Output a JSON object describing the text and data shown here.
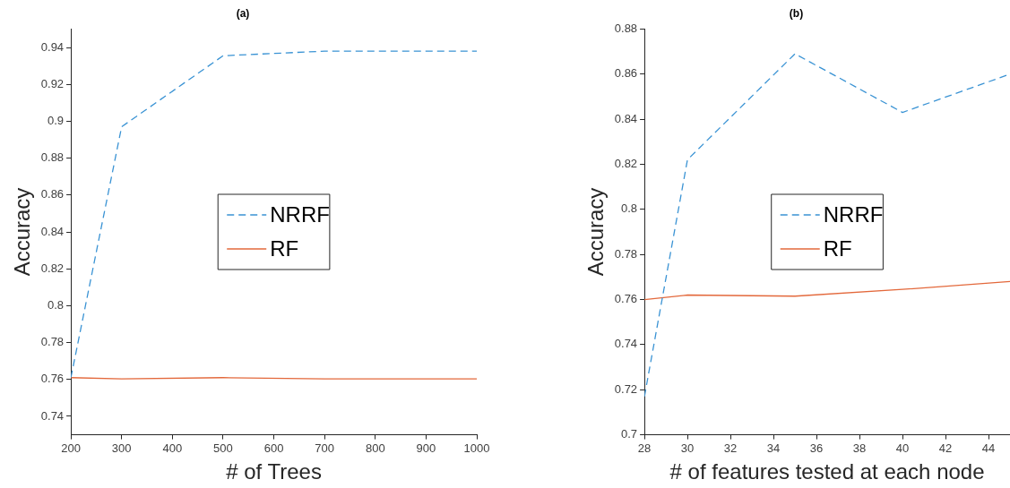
{
  "chart_data": [
    {
      "type": "line",
      "title": "(a)",
      "xlabel": "# of Trees",
      "ylabel": "Accuracy",
      "x": [
        200,
        300,
        500,
        700,
        1000
      ],
      "series": [
        {
          "name": "NRRF",
          "color": "#3a93d4",
          "line_style": "dashed",
          "values": [
            0.761,
            0.897,
            0.9355,
            0.938,
            0.938
          ]
        },
        {
          "name": "RF",
          "color": "#e3683b",
          "line_style": "solid",
          "values": [
            0.761,
            0.7603,
            0.761,
            0.7603,
            0.7603
          ]
        }
      ],
      "xlim": [
        200,
        1000
      ],
      "xticks": [
        200,
        300,
        400,
        500,
        600,
        700,
        800,
        900,
        1000
      ],
      "ylim": [
        0.73,
        0.95
      ],
      "yticks": [
        0.74,
        0.76,
        0.78,
        0.8,
        0.82,
        0.84,
        0.86,
        0.88,
        0.9,
        0.92,
        0.94
      ],
      "grid": false,
      "legend": "center",
      "marker": "none"
    },
    {
      "type": "line",
      "title": "(b)",
      "xlabel": "# of features tested at each node",
      "ylabel": "Accuracy",
      "x": [
        28,
        30,
        35,
        40,
        45
      ],
      "series": [
        {
          "name": "NRRF",
          "color": "#3a93d4",
          "line_style": "dashed",
          "values": [
            0.717,
            0.822,
            0.869,
            0.843,
            0.86
          ]
        },
        {
          "name": "RF",
          "color": "#e3683b",
          "line_style": "solid",
          "values": [
            0.76,
            0.762,
            0.7615,
            0.7645,
            0.768
          ]
        }
      ],
      "xlim": [
        28,
        45
      ],
      "xticks": [
        28,
        30,
        32,
        34,
        36,
        38,
        40,
        42,
        44
      ],
      "ylim": [
        0.7,
        0.88
      ],
      "yticks": [
        0.7,
        0.72,
        0.74,
        0.76,
        0.78,
        0.8,
        0.82,
        0.84,
        0.86,
        0.88
      ],
      "grid": false,
      "legend": "center",
      "marker": "none"
    }
  ]
}
